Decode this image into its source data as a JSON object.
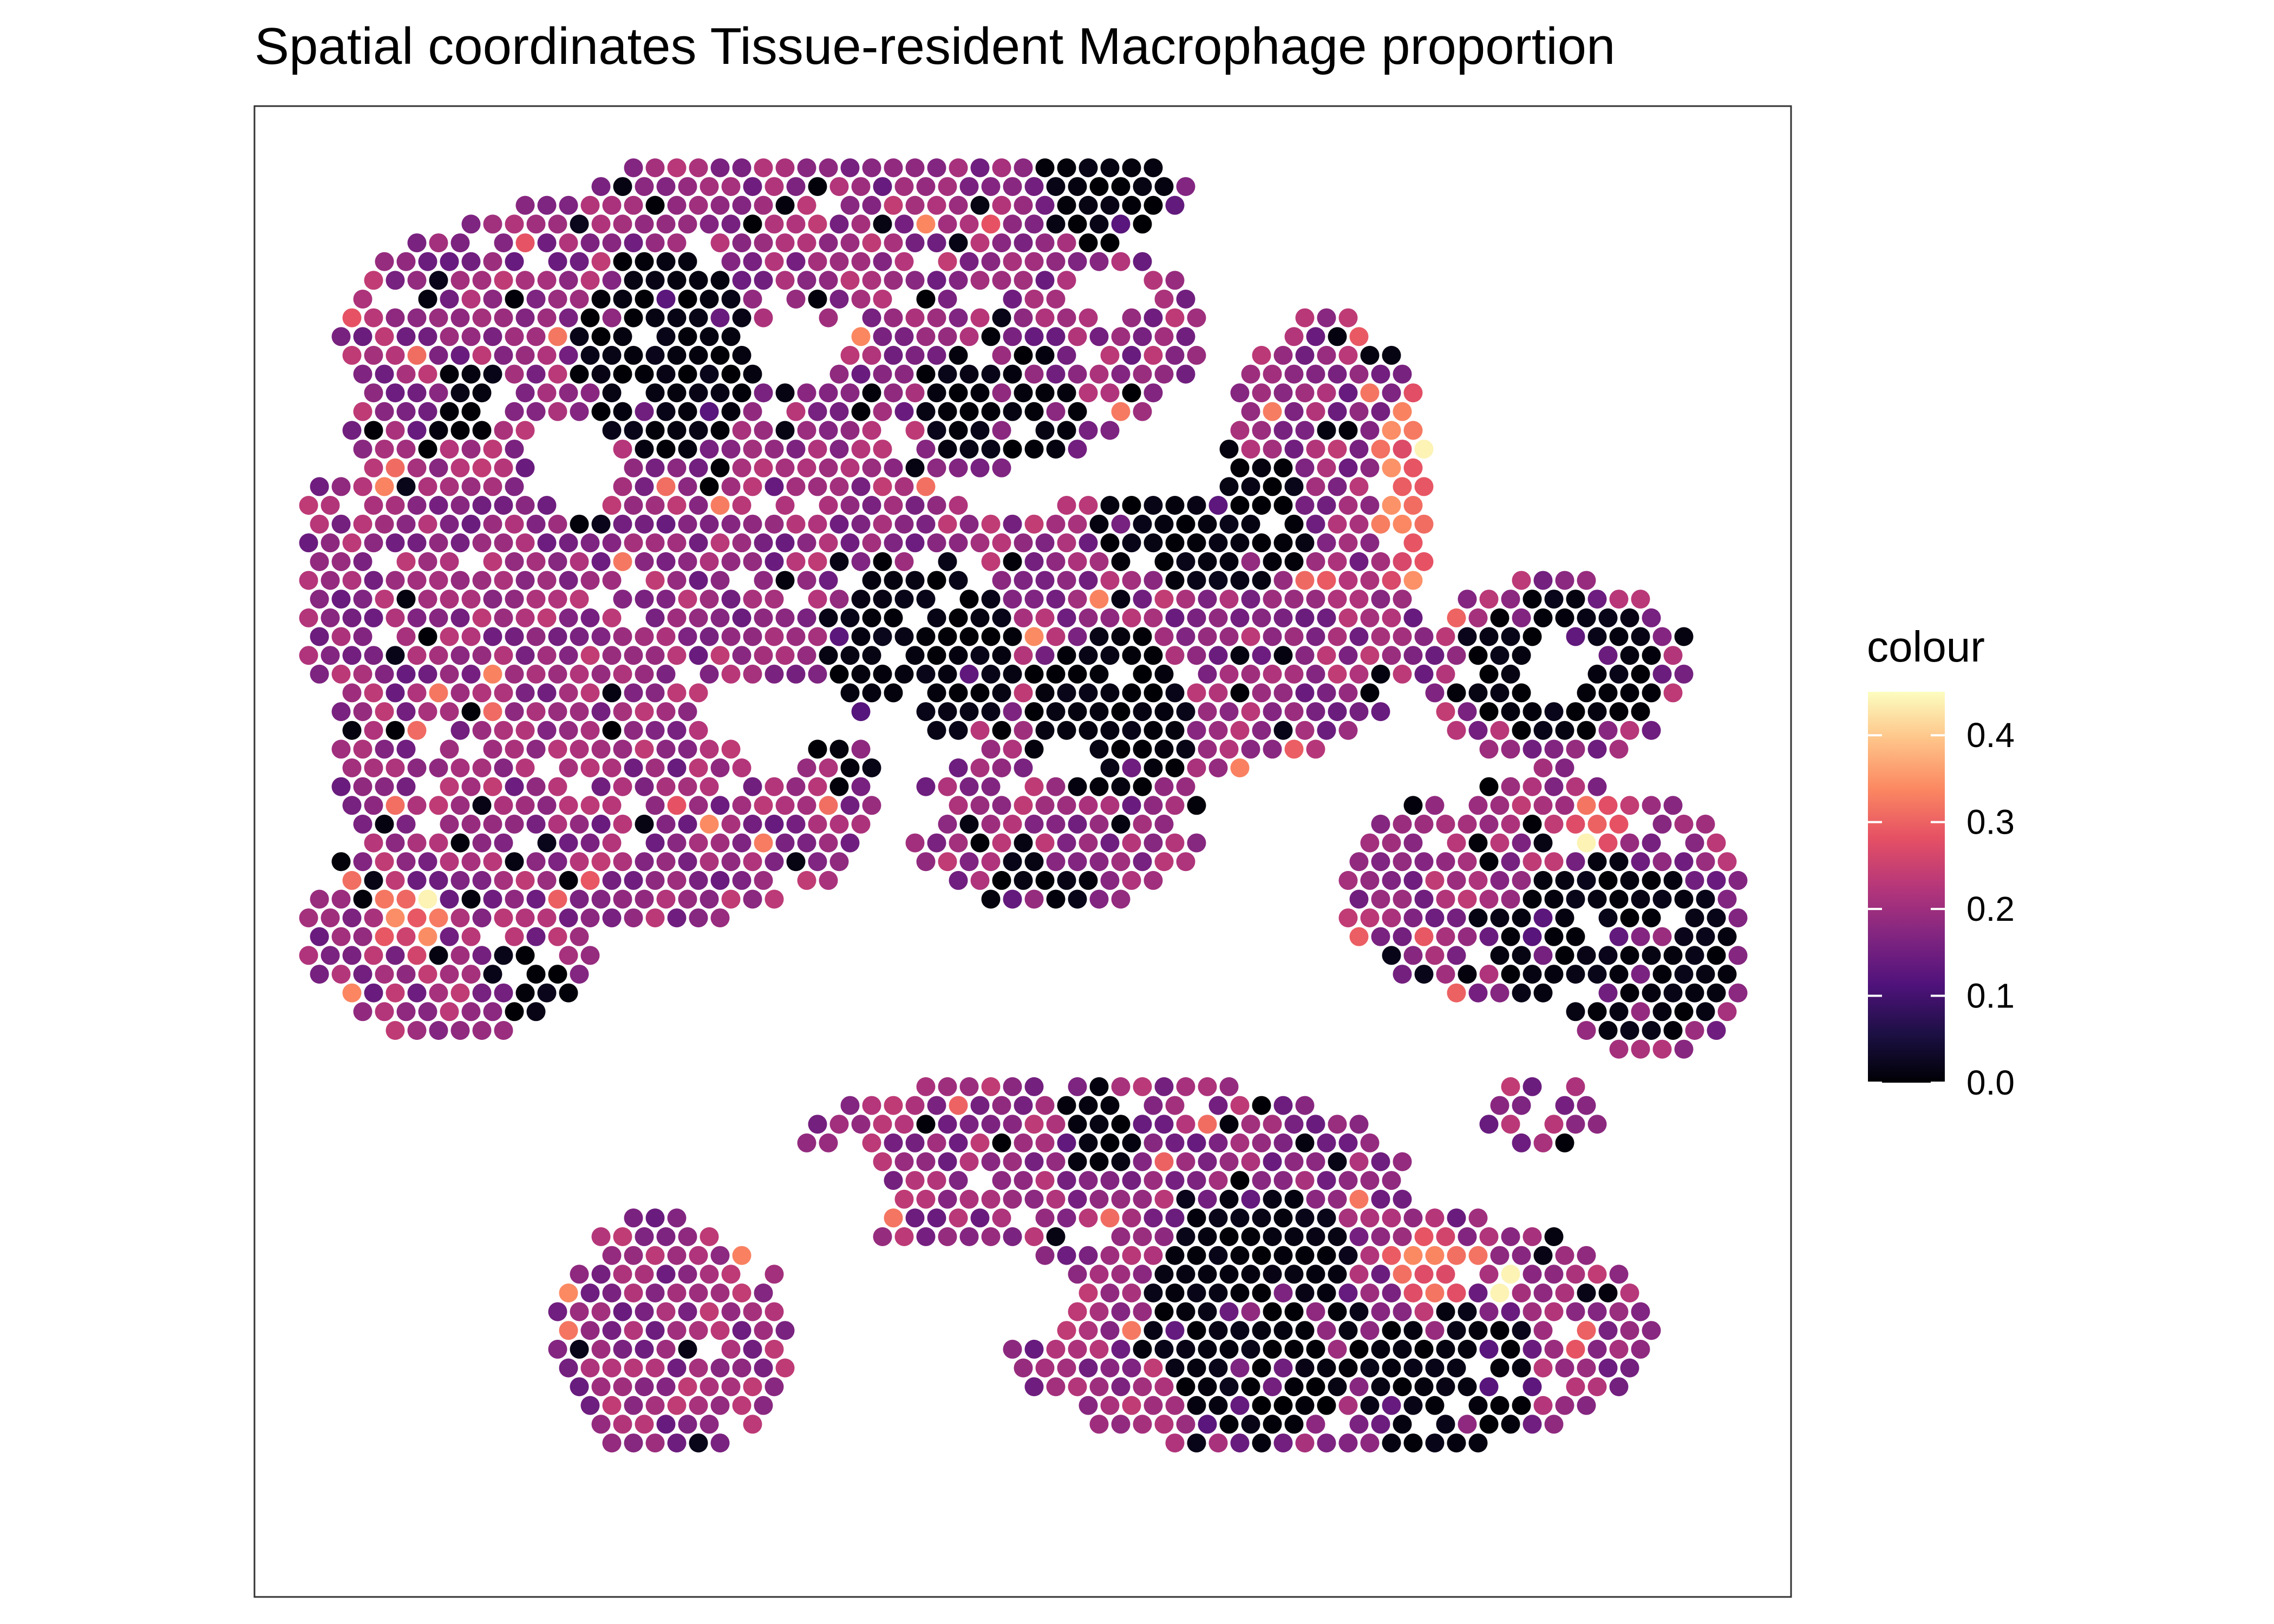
{
  "chart_data": {
    "type": "scatter",
    "title": "Spatial coordinates Tissue-resident Macrophage proportion",
    "xlabel": "",
    "ylabel": "",
    "grid": false,
    "axes_ticks": false,
    "colour_scale": {
      "name": "colour",
      "palette": "magma",
      "range": [
        0.0,
        0.45
      ],
      "ticks": [
        0.0,
        0.1,
        0.2,
        0.3,
        0.4
      ],
      "tick_labels": [
        "0.0",
        "0.1",
        "0.2",
        "0.3",
        "0.4"
      ],
      "stops": [
        "#000004",
        "#1c1044",
        "#4f127b",
        "#812581",
        "#b5367a",
        "#e55064",
        "#fb8761",
        "#fec287",
        "#fcfdbf"
      ]
    },
    "legend_position": "right",
    "spot_grid": "hexagonal Visium-style spots covering a roughly circular tissue section",
    "regions": [
      {
        "description": "dominant tissue background",
        "value": 0.19
      },
      {
        "description": "low-proportion tumour nests",
        "value": 0.0
      },
      {
        "description": "high-proportion border spots",
        "value": 0.3
      },
      {
        "description": "peak spots",
        "value": 0.44
      }
    ]
  }
}
